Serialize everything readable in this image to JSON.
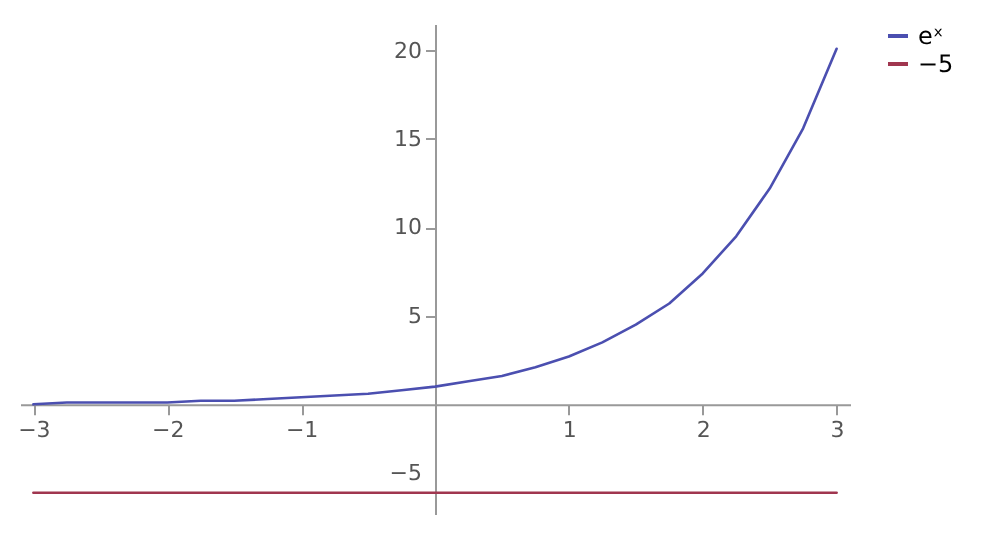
{
  "chart_data": {
    "type": "line",
    "series": [
      {
        "name": "eˣ",
        "color": "#4b4fb0",
        "x": [
          -3,
          -2.75,
          -2.5,
          -2.25,
          -2,
          -1.75,
          -1.5,
          -1.25,
          -1,
          -0.75,
          -0.5,
          -0.25,
          0,
          0.25,
          0.5,
          0.75,
          1,
          1.25,
          1.5,
          1.75,
          2,
          2.25,
          2.5,
          2.75,
          3
        ],
        "values": [
          0,
          0.1,
          0.1,
          0.1,
          0.1,
          0.2,
          0.2,
          0.3,
          0.4,
          0.5,
          0.6,
          0.8,
          1,
          1.3,
          1.6,
          2.1,
          2.7,
          3.5,
          4.5,
          5.7,
          7.4,
          9.5,
          12.2,
          15.6,
          20.1
        ]
      },
      {
        "name": "−5",
        "color": "#a0364f",
        "x": [
          -3,
          3
        ],
        "values": [
          -5,
          -5
        ]
      }
    ],
    "xlim": [
      -3.1,
      3.1
    ],
    "ylim": [
      -6.2,
      21.5
    ],
    "xticks": [
      -3,
      -2,
      -1,
      1,
      2,
      3
    ],
    "yticks": [
      -5,
      5,
      10,
      15,
      20
    ],
    "legend": "right"
  }
}
